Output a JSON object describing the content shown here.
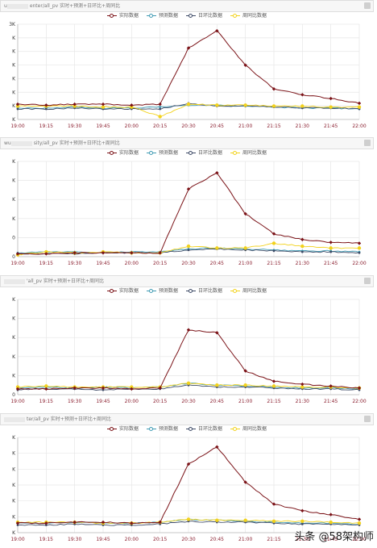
{
  "panels": [
    {
      "title_prefix": "u",
      "title_suffix": "enter/all_pv 实时+预测+日环比+周同比"
    },
    {
      "title_prefix": "wu",
      "title_suffix": "sity/all_pv 实时+预测+日环比+周同比"
    },
    {
      "title_prefix": "",
      "title_suffix": "'all_pv 实时+预测+日环比+周同比"
    },
    {
      "title_prefix": "",
      "title_suffix": "ter/all_pv 实时+预测+日环比+周同比"
    }
  ],
  "watermark": "头条 @58架构师",
  "icons": {
    "panel_menu": "dropdown-menu-icon"
  },
  "colors": {
    "actual": "#7b1318",
    "predicted": "#3f9ab3",
    "day_over_day": "#3d4a66",
    "week_over_week": "#f2d21c",
    "grid": "#e6e6e6",
    "axis_text": "#8b2030"
  },
  "chart_data": [
    {
      "type": "line",
      "x": [
        "19:00",
        "19:15",
        "19:30",
        "19:45",
        "20:00",
        "20:15",
        "20:30",
        "20:45",
        "21:00",
        "21:15",
        "21:30",
        "21:45",
        "22:00"
      ],
      "y_tick_labels": [
        "3K",
        "K",
        "K",
        "K",
        "K",
        "K",
        "K",
        "K"
      ],
      "series_names": [
        "实际数据",
        "预测数据",
        "日环比数据",
        "周同比数据"
      ],
      "series": [
        {
          "name": "实际数据",
          "values": [
            0.16,
            0.15,
            0.16,
            0.16,
            0.15,
            0.16,
            0.75,
            0.93,
            0.57,
            0.32,
            0.26,
            0.22,
            0.17
          ]
        },
        {
          "name": "预测数据",
          "values": [
            0.12,
            0.12,
            0.13,
            0.12,
            0.12,
            0.13,
            0.15,
            0.15,
            0.14,
            0.13,
            0.12,
            0.12,
            0.11
          ]
        },
        {
          "name": "日环比数据",
          "values": [
            0.11,
            0.11,
            0.12,
            0.11,
            0.11,
            0.11,
            0.17,
            0.14,
            0.14,
            0.13,
            0.12,
            0.12,
            0.11
          ]
        },
        {
          "name": "周同比数据",
          "values": [
            0.14,
            0.14,
            0.14,
            0.13,
            0.13,
            0.03,
            0.16,
            0.15,
            0.15,
            0.14,
            0.14,
            0.13,
            0.13
          ]
        }
      ]
    },
    {
      "type": "line",
      "x": [
        "19:00",
        "19:15",
        "19:30",
        "19:45",
        "20:00",
        "20:15",
        "20:30",
        "20:45",
        "21:00",
        "21:15",
        "21:30",
        "21:45",
        "22:00"
      ],
      "y_tick_labels": [
        "K",
        "K",
        "K",
        "K",
        "0",
        "0"
      ],
      "series_names": [
        "实际数据",
        "预测数据",
        "日环比数据",
        "周同比数据"
      ],
      "series": [
        {
          "name": "实际数据",
          "values": [
            0.03,
            0.03,
            0.04,
            0.04,
            0.04,
            0.04,
            0.71,
            0.88,
            0.45,
            0.24,
            0.18,
            0.15,
            0.14
          ]
        },
        {
          "name": "预测数据",
          "values": [
            0.04,
            0.05,
            0.05,
            0.04,
            0.05,
            0.05,
            0.08,
            0.09,
            0.08,
            0.07,
            0.06,
            0.06,
            0.05
          ]
        },
        {
          "name": "日环比数据",
          "values": [
            0.03,
            0.03,
            0.03,
            0.04,
            0.04,
            0.04,
            0.07,
            0.08,
            0.07,
            0.06,
            0.05,
            0.05,
            0.04
          ]
        },
        {
          "name": "周同比数据",
          "values": [
            0.02,
            0.05,
            0.04,
            0.05,
            0.04,
            0.04,
            0.11,
            0.09,
            0.09,
            0.14,
            0.11,
            0.09,
            0.09
          ]
        }
      ]
    },
    {
      "type": "line",
      "x": [
        "19:00",
        "19:15",
        "19:30",
        "19:45",
        "20:00",
        "20:15",
        "20:30",
        "20:45",
        "21:00",
        "21:15",
        "21:30",
        "21:45",
        "22:00"
      ],
      "y_tick_labels": [
        "K",
        "K",
        "K",
        "K",
        "K",
        "0"
      ],
      "series_names": [
        "实际数据",
        "预测数据",
        "日环比数据",
        "周同比数据"
      ],
      "series": [
        {
          "name": "实际数据",
          "values": [
            0.06,
            0.06,
            0.07,
            0.07,
            0.06,
            0.07,
            0.68,
            0.65,
            0.25,
            0.14,
            0.11,
            0.09,
            0.07
          ]
        },
        {
          "name": "预测数据",
          "values": [
            0.07,
            0.08,
            0.07,
            0.08,
            0.07,
            0.08,
            0.12,
            0.1,
            0.09,
            0.08,
            0.07,
            0.07,
            0.06
          ]
        },
        {
          "name": "日环比数据",
          "values": [
            0.05,
            0.06,
            0.06,
            0.05,
            0.06,
            0.06,
            0.1,
            0.08,
            0.08,
            0.07,
            0.06,
            0.06,
            0.05
          ]
        },
        {
          "name": "周同比数据",
          "values": [
            0.08,
            0.09,
            0.08,
            0.08,
            0.08,
            0.08,
            0.12,
            0.1,
            0.1,
            0.09,
            0.08,
            0.08,
            0.07
          ]
        }
      ]
    },
    {
      "type": "line",
      "x": [
        "19:00",
        "19:15",
        "19:30",
        "19:45",
        "20:00",
        "20:15",
        "20:30",
        "20:45",
        "21:00",
        "21:15",
        "21:30",
        "21:45",
        "22:00"
      ],
      "y_tick_labels": [
        "K",
        "K",
        "K",
        "K",
        "K",
        "K",
        "K"
      ],
      "series_names": [
        "实际数据",
        "预测数据",
        "日环比数据",
        "周同比数据"
      ],
      "series": [
        {
          "name": "实际数据",
          "values": [
            0.1,
            0.1,
            0.11,
            0.11,
            0.1,
            0.11,
            0.72,
            0.9,
            0.53,
            0.3,
            0.23,
            0.19,
            0.14
          ]
        },
        {
          "name": "预测数据",
          "values": [
            0.1,
            0.1,
            0.11,
            0.1,
            0.1,
            0.11,
            0.14,
            0.13,
            0.12,
            0.11,
            0.1,
            0.1,
            0.09
          ]
        },
        {
          "name": "日环比数据",
          "values": [
            0.08,
            0.08,
            0.09,
            0.08,
            0.08,
            0.09,
            0.12,
            0.11,
            0.11,
            0.1,
            0.09,
            0.09,
            0.08
          ]
        },
        {
          "name": "周同比数据",
          "values": [
            0.11,
            0.11,
            0.11,
            0.1,
            0.1,
            0.11,
            0.14,
            0.13,
            0.13,
            0.12,
            0.12,
            0.11,
            0.1
          ]
        }
      ]
    }
  ]
}
